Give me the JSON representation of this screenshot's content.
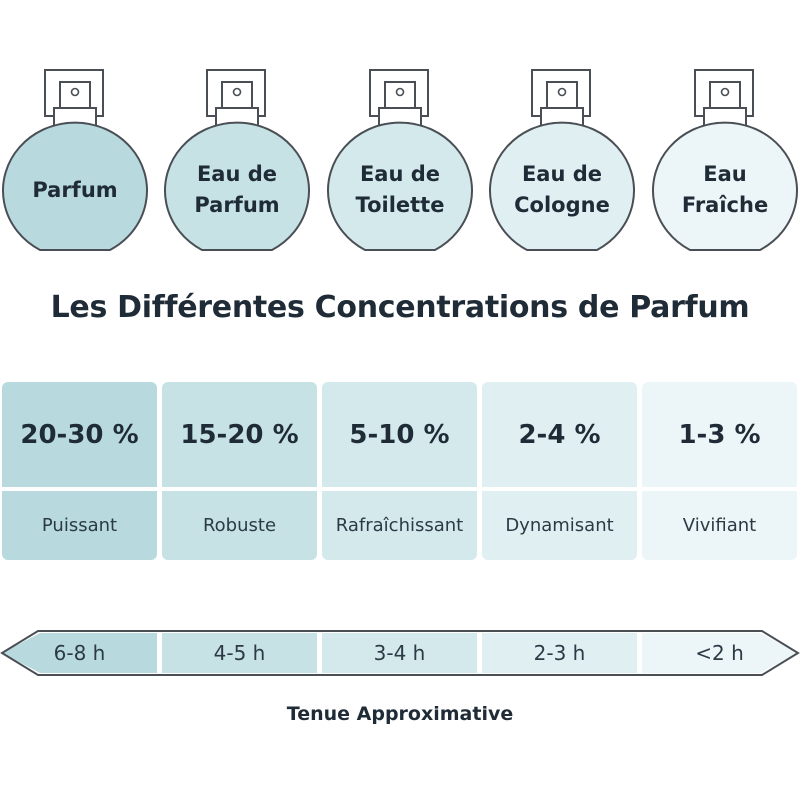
{
  "bottles": [
    {
      "label": "Parfum",
      "color": "#b8dadf"
    },
    {
      "label": "Eau de\nParfum",
      "color": "#c6e2e5"
    },
    {
      "label": "Eau de\nToilette",
      "color": "#d3e9ec"
    },
    {
      "label": "Eau de\nCologne",
      "color": "#e0eff1"
    },
    {
      "label": "Eau\nFraîche",
      "color": "#ecf5f7"
    }
  ],
  "title": "Les Différentes Concentrations de Parfum",
  "concentrations": [
    {
      "percent": "20-30 %",
      "description": "Puissant"
    },
    {
      "percent": "15-20 %",
      "description": "Robuste"
    },
    {
      "percent": "5-10 %",
      "description": "Rafraîchissant"
    },
    {
      "percent": "2-4 %",
      "description": "Dynamisant"
    },
    {
      "percent": "1-3 %",
      "description": "Vivifiant"
    }
  ],
  "durations": [
    "6-8 h",
    "4-5 h",
    "3-4 h",
    "2-3 h",
    "<2 h"
  ],
  "duration_title": "Tenue Approximative",
  "outline_color": "#4a4f55"
}
